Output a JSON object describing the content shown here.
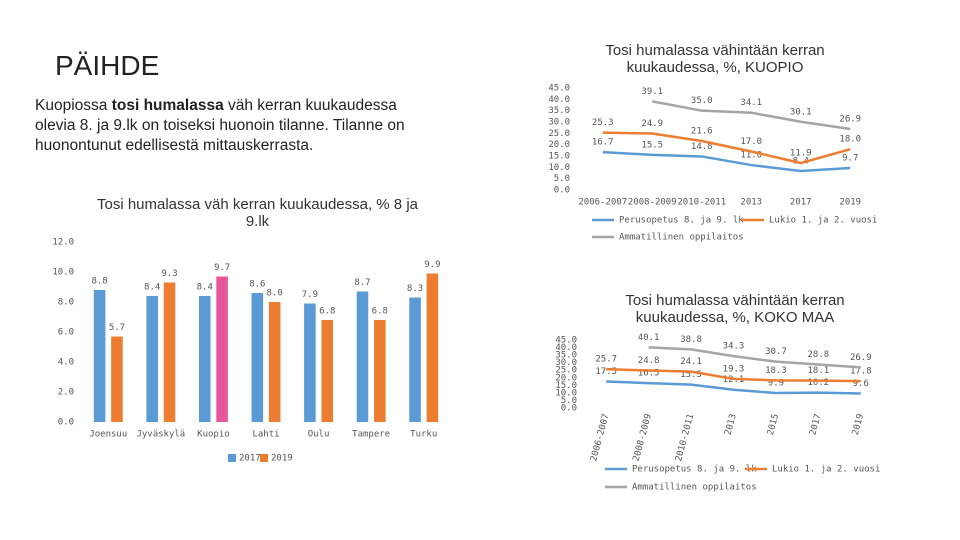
{
  "text": {
    "title": "PÄIHDE",
    "paragraph": [
      "Kuopiossa ",
      "tosi humalassa",
      " väh kerran kuukaudessa olevia 8. ja 9.lk on toiseksi huonoin tilanne.  Tilanne on huonontunut edellisestä mittauskerrasta."
    ]
  },
  "chart_data": [
    {
      "type": "line",
      "title": "Tosi humalassa vähintään kerran kuukaudessa, %, KUOPIO",
      "categories": [
        "2006-2007",
        "2008-2009",
        "2010-2011",
        "2013",
        "2017",
        "2019"
      ],
      "ylim": [
        0,
        45
      ],
      "yticks": [
        {
          "value": 0,
          "label": "0.0"
        },
        {
          "value": 5,
          "label": "5.0"
        },
        {
          "value": 10,
          "label": "10.0"
        },
        {
          "value": 15,
          "label": "15.0"
        },
        {
          "value": 20,
          "label": "20.0"
        },
        {
          "value": 25,
          "label": "25.0"
        },
        {
          "value": 30,
          "label": "30.0"
        },
        {
          "value": 35,
          "label": "35.0"
        },
        {
          "value": 40,
          "label": "40.0"
        },
        {
          "value": 45,
          "label": "45.0"
        }
      ],
      "series": [
        {
          "name": "Perusopetus 8. ja 9. lk",
          "color": "#5b9bd5",
          "values": [
            16.7,
            15.5,
            14.8,
            11.0,
            8.4,
            9.7
          ],
          "value_labels": [
            "16.7",
            "15.5",
            "14.8",
            "11.0",
            "8.4",
            "9.7"
          ]
        },
        {
          "name": "Lukio 1. ja 2. vuosi",
          "color": "#ed7d31",
          "values": [
            25.3,
            24.9,
            21.6,
            17.0,
            11.9,
            18.0
          ],
          "value_labels": [
            "25.3",
            "24.9",
            "21.6",
            "17.0",
            "11.9",
            "18.0"
          ]
        },
        {
          "name": "Ammatillinen oppilaitos",
          "color": "#a5a5a5",
          "values": [
            null,
            39.1,
            35.0,
            34.1,
            30.1,
            26.9
          ],
          "value_labels": [
            null,
            "39.1",
            "35.0",
            "34.1",
            "30.1",
            "26.9"
          ]
        }
      ]
    },
    {
      "type": "bar",
      "title": "Tosi humalassa väh kerran kuukaudessa, % 8 ja 9.lk",
      "categories": [
        "Joensuu",
        "Jyväskylä",
        "Kuopio",
        "Lahti",
        "Oulu",
        "Tampere",
        "Turku"
      ],
      "ylim": [
        0,
        12
      ],
      "yticks": [
        {
          "value": 0,
          "label": "0.0"
        },
        {
          "value": 2,
          "label": "2.0"
        },
        {
          "value": 4,
          "label": "4.0"
        },
        {
          "value": 6,
          "label": "6.0"
        },
        {
          "value": 8,
          "label": "8.0"
        },
        {
          "value": 10,
          "label": "10.0"
        },
        {
          "value": 12,
          "label": "12.0"
        }
      ],
      "series": [
        {
          "name": "2017",
          "color": "#5b9bd5",
          "values": [
            8.8,
            8.4,
            8.4,
            8.6,
            7.9,
            8.7,
            8.3
          ],
          "value_labels": [
            "8.8",
            "8.4",
            "8.4",
            "8.6",
            "7.9",
            "8.7",
            "8.3"
          ]
        },
        {
          "name": "2019",
          "color": "#ed7d31",
          "point_colors": [
            "#ed7d31",
            "#ed7d31",
            "#e8559b",
            "#ed7d31",
            "#ed7d31",
            "#ed7d31",
            "#ed7d31"
          ],
          "values": [
            5.7,
            9.3,
            9.7,
            8.0,
            6.8,
            6.8,
            9.9
          ],
          "value_labels": [
            "5.7",
            "9.3",
            "9.7",
            "8.0",
            "6.8",
            "6.8",
            "9.9"
          ]
        }
      ]
    },
    {
      "type": "line",
      "title": "Tosi humalassa vähintään kerran kuukaudessa, %, KOKO MAA",
      "categories": [
        "2006-2007",
        "2008-2009",
        "2010-2011",
        "2013",
        "2015",
        "2017",
        "2019"
      ],
      "rotate_x_labels": true,
      "ylim": [
        0,
        45
      ],
      "yticks": [
        {
          "value": 0,
          "label": "0.0"
        },
        {
          "value": 5,
          "label": "5.0"
        },
        {
          "value": 10,
          "label": "10.0"
        },
        {
          "value": 15,
          "label": "15.0"
        },
        {
          "value": 20,
          "label": "20.0"
        },
        {
          "value": 25,
          "label": "25.0"
        },
        {
          "value": 30,
          "label": "30.0"
        },
        {
          "value": 35,
          "label": "35.0"
        },
        {
          "value": 40,
          "label": "40.0"
        },
        {
          "value": 45,
          "label": "45.0"
        }
      ],
      "series": [
        {
          "name": "Perusopetus 8. ja 9. lk",
          "color": "#5b9bd5",
          "values": [
            17.5,
            16.5,
            15.5,
            12.1,
            9.9,
            10.2,
            9.6
          ],
          "value_labels": [
            "17.5",
            "16.5",
            "15.5",
            "12.1",
            "9.9",
            "10.2",
            "9.6"
          ]
        },
        {
          "name": "Lukio 1. ja 2. vuosi",
          "color": "#ed7d31",
          "values": [
            25.7,
            24.8,
            24.1,
            19.3,
            18.3,
            18.1,
            17.8
          ],
          "value_labels": [
            "25.7",
            "24.8",
            "24.1",
            "19.3",
            "18.3",
            "18.1",
            "17.8"
          ]
        },
        {
          "name": "Ammatillinen oppilaitos",
          "color": "#a5a5a5",
          "values": [
            null,
            40.1,
            38.8,
            34.3,
            30.7,
            28.8,
            26.9
          ],
          "value_labels": [
            null,
            "40.1",
            "38.8",
            "34.3",
            "30.7",
            "28.8",
            "26.9"
          ]
        }
      ]
    }
  ]
}
